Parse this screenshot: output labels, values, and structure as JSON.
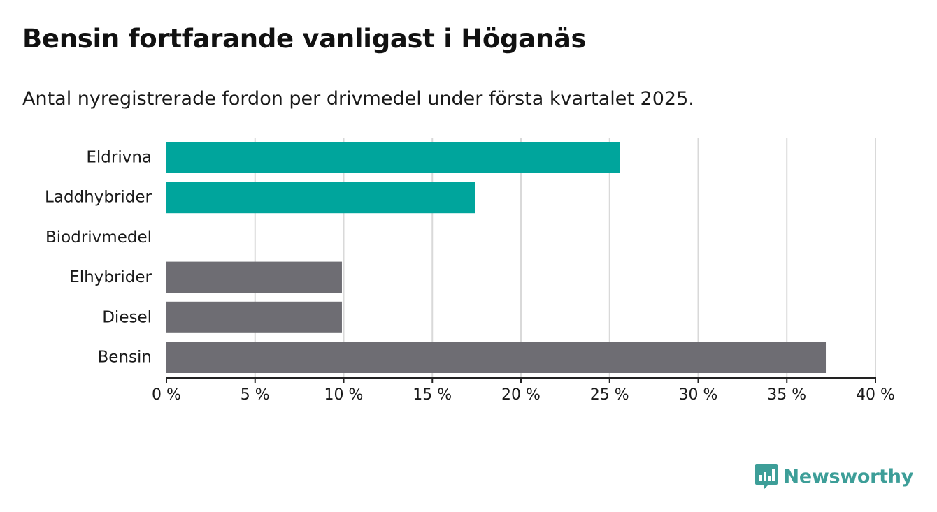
{
  "title": "Bensin fortfarande vanligast i Höganäs",
  "subtitle": "Antal nyregistrerade fordon per drivmedel under första kvartalet 2025.",
  "brand": {
    "name": "Newsworthy",
    "icon": "newsworthy-chart-icon",
    "color": "#3d9e98"
  },
  "chart_data": {
    "type": "bar",
    "orientation": "horizontal",
    "categories": [
      "Eldrivna",
      "Laddhybrider",
      "Biodrivmedel",
      "Elhybrider",
      "Diesel",
      "Bensin"
    ],
    "values": [
      25.6,
      17.4,
      0,
      9.9,
      9.9,
      37.2
    ],
    "bar_colors": [
      "#00a59c",
      "#00a59c",
      "#00a59c",
      "#6e6d73",
      "#6e6d73",
      "#6e6d73"
    ],
    "xlim": [
      0,
      40
    ],
    "xticks": [
      0,
      5,
      10,
      15,
      20,
      25,
      30,
      35,
      40
    ],
    "tick_labels": [
      "0 %",
      "5 %",
      "10 %",
      "15 %",
      "20 %",
      "25 %",
      "30 %",
      "35 %",
      "40 %"
    ],
    "grid": "vertical",
    "xlabel": "",
    "ylabel": ""
  }
}
